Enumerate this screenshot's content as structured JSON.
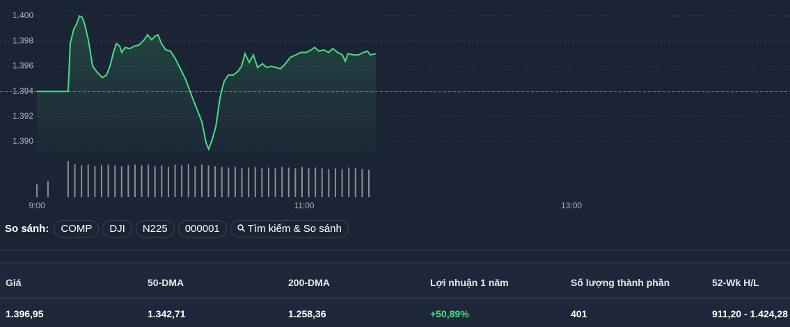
{
  "chart_data": {
    "type": "line",
    "x": [
      9.0,
      9.234,
      9.25,
      9.276,
      9.297,
      9.318,
      9.339,
      9.359,
      9.385,
      9.417,
      9.453,
      9.49,
      9.521,
      9.547,
      9.573,
      9.594,
      9.62,
      9.635,
      9.661,
      9.693,
      9.729,
      9.766,
      9.802,
      9.828,
      9.859,
      9.885,
      9.906,
      9.932,
      9.964,
      10.0,
      10.036,
      10.078,
      10.115,
      10.156,
      10.193,
      10.234,
      10.266,
      10.286,
      10.313,
      10.339,
      10.37,
      10.401,
      10.432,
      10.469,
      10.505,
      10.531,
      10.557,
      10.589,
      10.62,
      10.651,
      10.688,
      10.719,
      10.755,
      10.786,
      10.823,
      10.859,
      10.896,
      10.938,
      10.974,
      11.016,
      11.052,
      11.078,
      11.109,
      11.146,
      11.182,
      11.214,
      11.25,
      11.286,
      11.307,
      11.328,
      11.37,
      11.406,
      11.443,
      11.474,
      11.495,
      11.536
    ],
    "series": [
      {
        "color": "#4ade80",
        "values": [
          1394,
          1394,
          1397.85,
          1398.95,
          1399.34,
          1400.0,
          1399.9,
          1399.3,
          1398.1,
          1396.0,
          1395.5,
          1395.1,
          1395.3,
          1396.0,
          1397.1,
          1397.8,
          1397.6,
          1397.1,
          1397.5,
          1397.4,
          1397.6,
          1397.7,
          1398.1,
          1398.5,
          1398.1,
          1398.4,
          1398.5,
          1397.8,
          1397.3,
          1397.2,
          1396.6,
          1395.7,
          1394.9,
          1393.7,
          1392.7,
          1391.6,
          1389.9,
          1389.4,
          1390.2,
          1391.2,
          1393.5,
          1394.8,
          1395.3,
          1395.3,
          1395.6,
          1396.0,
          1397.0,
          1396.3,
          1396.9,
          1395.9,
          1396.2,
          1395.9,
          1396.0,
          1395.9,
          1395.8,
          1396.2,
          1396.7,
          1396.9,
          1397.1,
          1397.1,
          1397.3,
          1397.5,
          1397.2,
          1397.3,
          1397.1,
          1397.4,
          1397.1,
          1396.9,
          1396.4,
          1397.0,
          1396.9,
          1396.9,
          1397.1,
          1397.2,
          1396.9,
          1397.0
        ]
      }
    ],
    "baseline": 1394,
    "ylim": [
      1389,
      1401
    ],
    "yticks": [
      {
        "value": 1400,
        "label": "1.400"
      },
      {
        "value": 1398,
        "label": "1.398"
      },
      {
        "value": 1396,
        "label": "1.396"
      },
      {
        "value": 1394,
        "label": "1.394"
      },
      {
        "value": 1392,
        "label": "1.392"
      },
      {
        "value": 1390,
        "label": "1.390"
      }
    ],
    "xlim": [
      9,
      14.635
    ],
    "xticks": [
      {
        "value": 9,
        "label": "9:00"
      },
      {
        "value": 11,
        "label": "11:00"
      },
      {
        "value": 13,
        "label": "13:00"
      }
    ],
    "grid": true,
    "volume": {
      "color": "#8a8f99",
      "x": [
        9.0,
        9.083,
        9.234,
        9.284,
        9.334,
        9.384,
        9.434,
        9.484,
        9.534,
        9.584,
        9.634,
        9.684,
        9.734,
        9.784,
        9.834,
        9.884,
        9.934,
        9.984,
        10.034,
        10.084,
        10.134,
        10.184,
        10.234,
        10.284,
        10.334,
        10.384,
        10.434,
        10.484,
        10.534,
        10.584,
        10.634,
        10.684,
        10.734,
        10.784,
        10.834,
        10.884,
        10.934,
        10.984,
        11.034,
        11.084,
        11.134,
        11.184,
        11.234,
        11.284,
        11.334,
        11.384,
        11.434,
        11.484
      ],
      "values": [
        18,
        22,
        50,
        46,
        44,
        45,
        43,
        44,
        45,
        44,
        43,
        44,
        45,
        44,
        45,
        43,
        44,
        42,
        45,
        44,
        46,
        43,
        45,
        44,
        43,
        42,
        41,
        42,
        40,
        41,
        42,
        40,
        41,
        40,
        42,
        41,
        40,
        42,
        40,
        41,
        40,
        39,
        40,
        39,
        41,
        40,
        39,
        38
      ]
    }
  },
  "compare": {
    "label": "So sánh:",
    "items": [
      "COMP",
      "DJI",
      "N225",
      "000001"
    ],
    "search": "Tìm kiếm & So sánh"
  },
  "stats": {
    "headers": [
      "Giá",
      "50-DMA",
      "200-DMA",
      "Lợi nhuận 1 năm",
      "Số lượng thành phần",
      "52-Wk H/L"
    ],
    "values": [
      "1.396,95",
      "1.342,71",
      "1.258,36",
      "+50,89%",
      "401",
      "911,20 - 1.424,28"
    ]
  }
}
